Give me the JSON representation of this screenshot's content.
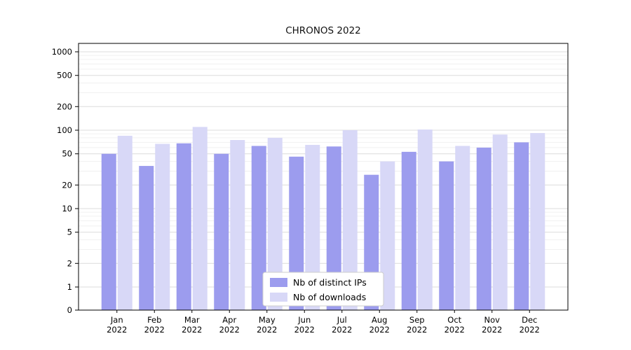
{
  "chart_data": {
    "type": "bar",
    "title": "CHRONOS 2022",
    "background": "#ffffff",
    "x_categories": [
      {
        "month": "Jan",
        "year": "2022"
      },
      {
        "month": "Feb",
        "year": "2022"
      },
      {
        "month": "Mar",
        "year": "2022"
      },
      {
        "month": "Apr",
        "year": "2022"
      },
      {
        "month": "May",
        "year": "2022"
      },
      {
        "month": "Jun",
        "year": "2022"
      },
      {
        "month": "Jul",
        "year": "2022"
      },
      {
        "month": "Aug",
        "year": "2022"
      },
      {
        "month": "Sep",
        "year": "2022"
      },
      {
        "month": "Oct",
        "year": "2022"
      },
      {
        "month": "Nov",
        "year": "2022"
      },
      {
        "month": "Dec",
        "year": "2022"
      }
    ],
    "series": [
      {
        "name": "Nb of distinct IPs",
        "color": "#9c9cee",
        "values": [
          50,
          35,
          68,
          50,
          63,
          46,
          62,
          27,
          53,
          40,
          60,
          70
        ]
      },
      {
        "name": "Nb of downloads",
        "color": "#d8d8f7",
        "values": [
          85,
          67,
          110,
          75,
          80,
          65,
          100,
          40,
          102,
          63,
          88,
          92
        ]
      }
    ],
    "y_axis": {
      "scale": "symlog",
      "ticks": [
        0,
        1,
        2,
        5,
        10,
        20,
        50,
        100,
        200,
        500,
        1000
      ],
      "minor_gridlines": [
        3,
        4,
        6,
        7,
        8,
        9,
        30,
        40,
        60,
        70,
        80,
        90,
        300,
        400,
        600,
        700,
        800,
        900
      ],
      "ylim": [
        0,
        1000
      ]
    },
    "grid": true,
    "legend": {
      "position": "lower center"
    },
    "colors": {
      "axis": "#000000",
      "major_grid": "#dcdcdc",
      "minor_grid": "#f0f0f0",
      "legend_border": "#cccccc",
      "legend_bg": "#ffffff"
    }
  }
}
